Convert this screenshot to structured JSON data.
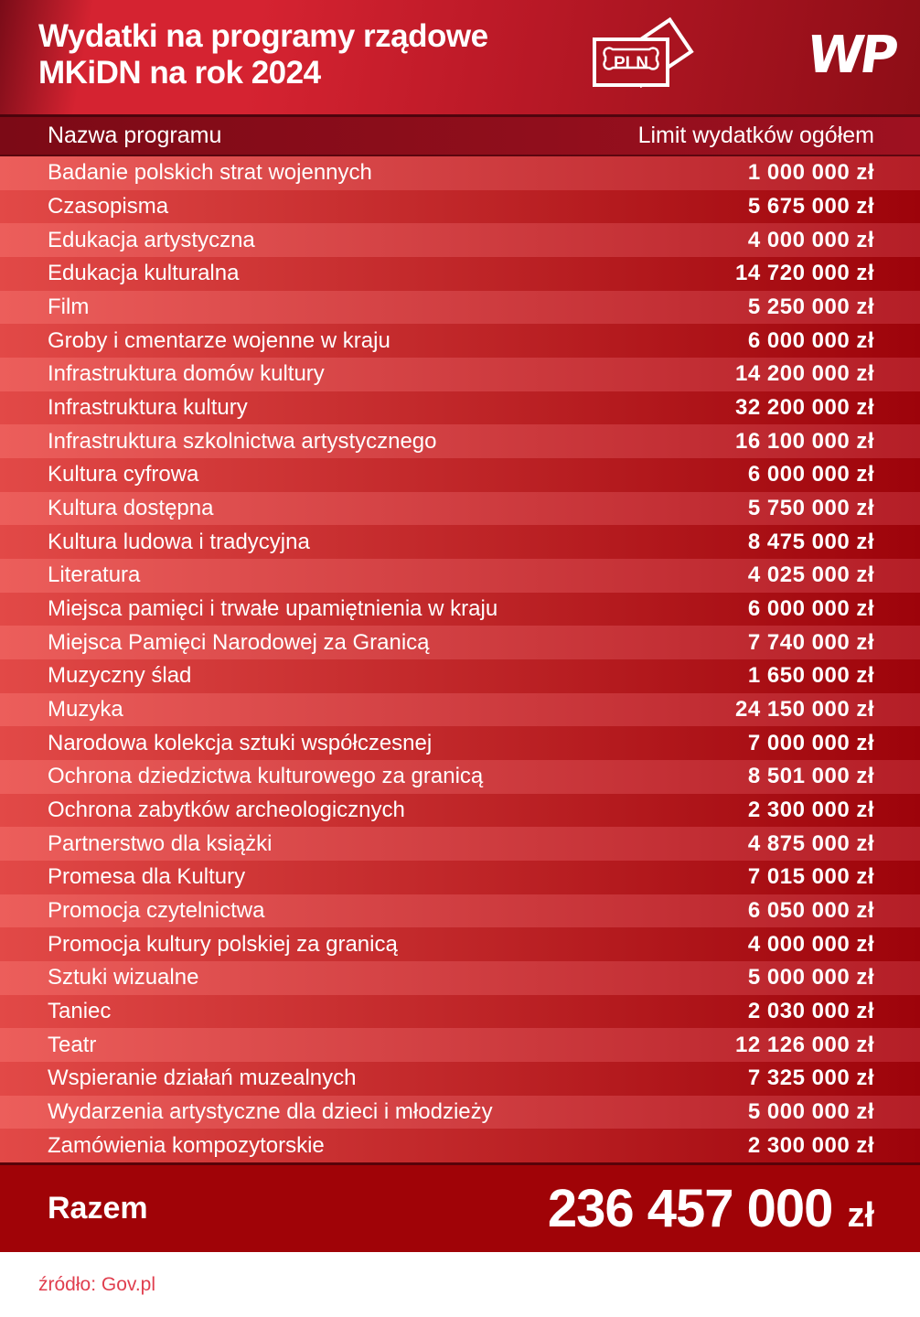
{
  "header": {
    "title_line1": "Wydatki na programy rządowe",
    "title_line2": "MKiDN na rok 2024",
    "pln_label": "PLN",
    "logo_text": "WP"
  },
  "table": {
    "columns": {
      "name": "Nazwa programu",
      "limit": "Limit wydatków ogółem"
    },
    "rows": [
      {
        "name": "Badanie polskich strat wojennych",
        "value": "1 000 000 zł"
      },
      {
        "name": "Czasopisma",
        "value": "5 675 000 zł"
      },
      {
        "name": "Edukacja artystyczna",
        "value": "4 000 000 zł"
      },
      {
        "name": "Edukacja kulturalna",
        "value": "14 720 000 zł"
      },
      {
        "name": "Film",
        "value": "5 250 000 zł"
      },
      {
        "name": "Groby i cmentarze wojenne w kraju",
        "value": "6 000 000 zł"
      },
      {
        "name": "Infrastruktura domów kultury",
        "value": "14 200 000 zł"
      },
      {
        "name": "Infrastruktura kultury",
        "value": "32 200 000 zł"
      },
      {
        "name": "Infrastruktura szkolnictwa artystycznego",
        "value": "16 100 000 zł"
      },
      {
        "name": "Kultura cyfrowa",
        "value": "6 000 000 zł"
      },
      {
        "name": "Kultura dostępna",
        "value": "5 750 000 zł"
      },
      {
        "name": "Kultura ludowa i tradycyjna",
        "value": "8 475 000 zł"
      },
      {
        "name": "Literatura",
        "value": "4 025 000 zł"
      },
      {
        "name": "Miejsca pamięci i trwałe upamiętnienia w kraju",
        "value": "6 000 000 zł"
      },
      {
        "name": "Miejsca Pamięci Narodowej za Granicą",
        "value": "7 740 000 zł"
      },
      {
        "name": "Muzyczny ślad",
        "value": "1 650 000 zł"
      },
      {
        "name": "Muzyka",
        "value": "24 150 000 zł"
      },
      {
        "name": "Narodowa kolekcja sztuki współczesnej",
        "value": "7 000 000 zł"
      },
      {
        "name": "Ochrona dziedzictwa kulturowego za granicą",
        "value": "8 501 000 zł"
      },
      {
        "name": "Ochrona zabytków archeologicznych",
        "value": "2 300 000 zł"
      },
      {
        "name": "Partnerstwo dla książki",
        "value": "4 875 000 zł"
      },
      {
        "name": "Promesa dla Kultury",
        "value": "7 015 000 zł"
      },
      {
        "name": "Promocja czytelnictwa",
        "value": "6 050 000 zł"
      },
      {
        "name": "Promocja kultury polskiej za granicą",
        "value": "4 000 000 zł"
      },
      {
        "name": "Sztuki wizualne",
        "value": "5 000 000 zł"
      },
      {
        "name": "Taniec",
        "value": "2 030 000 zł"
      },
      {
        "name": "Teatr",
        "value": "12 126 000 zł"
      },
      {
        "name": "Wspieranie działań muzealnych",
        "value": "7 325 000 zł"
      },
      {
        "name": "Wydarzenia artystyczne dla dzieci i młodzieży",
        "value": "5 000 000 zł"
      },
      {
        "name": "Zamówienia kompozytorskie",
        "value": "2 300 000 zł"
      }
    ]
  },
  "total": {
    "label": "Razem",
    "amount": "236 457 000",
    "currency": "zł"
  },
  "footer": {
    "source": "źródło: Gov.pl"
  },
  "colors": {
    "header-edge": "#7a0c18",
    "header-bright": "#d52331",
    "header-mid": "#bb1927",
    "header-dark": "#8d0d16",
    "colhead-left": "#7c0a16",
    "colhead-right": "#9e1120",
    "row-light-left": "#ec5e5b",
    "row-light-right": "#b41e27",
    "row-dark-left": "#e24947",
    "row-dark-right": "#9d030a",
    "total-bg": "#a00307",
    "source": "#e03e4e"
  },
  "chart_data": {
    "type": "table",
    "title": "Wydatki na programy rządowe MKiDN na rok 2024",
    "columns": [
      "Nazwa programu",
      "Limit wydatków ogółem"
    ],
    "currency": "PLN (zł)",
    "rows": [
      [
        "Badanie polskich strat wojennych",
        1000000
      ],
      [
        "Czasopisma",
        5675000
      ],
      [
        "Edukacja artystyczna",
        4000000
      ],
      [
        "Edukacja kulturalna",
        14720000
      ],
      [
        "Film",
        5250000
      ],
      [
        "Groby i cmentarze wojenne w kraju",
        6000000
      ],
      [
        "Infrastruktura domów kultury",
        14200000
      ],
      [
        "Infrastruktura kultury",
        32200000
      ],
      [
        "Infrastruktura szkolnictwa artystycznego",
        16100000
      ],
      [
        "Kultura cyfrowa",
        6000000
      ],
      [
        "Kultura dostępna",
        5750000
      ],
      [
        "Kultura ludowa i tradycyjna",
        8475000
      ],
      [
        "Literatura",
        4025000
      ],
      [
        "Miejsca pamięci i trwałe upamiętnienia w kraju",
        6000000
      ],
      [
        "Miejsca Pamięci Narodowej za Granicą",
        7740000
      ],
      [
        "Muzyczny ślad",
        1650000
      ],
      [
        "Muzyka",
        24150000
      ],
      [
        "Narodowa kolekcja sztuki współczesnej",
        7000000
      ],
      [
        "Ochrona dziedzictwa kulturowego za granicą",
        8501000
      ],
      [
        "Ochrona zabytków archeologicznych",
        2300000
      ],
      [
        "Partnerstwo dla książki",
        4875000
      ],
      [
        "Promesa dla Kultury",
        7015000
      ],
      [
        "Promocja czytelnictwa",
        6050000
      ],
      [
        "Promocja kultury polskiej za granicą",
        4000000
      ],
      [
        "Sztuki wizualne",
        5000000
      ],
      [
        "Taniec",
        2030000
      ],
      [
        "Teatr",
        12126000
      ],
      [
        "Wspieranie działań muzealnych",
        7325000
      ],
      [
        "Wydarzenia artystyczne dla dzieci i młodzieży",
        5000000
      ],
      [
        "Zamówienia kompozytorskie",
        2300000
      ]
    ],
    "total": {
      "label": "Razem",
      "value": 236457000
    },
    "source": "Gov.pl"
  }
}
